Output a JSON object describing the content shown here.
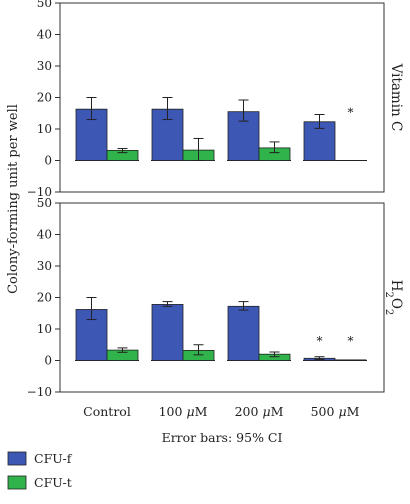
{
  "chart_data": {
    "type": "bar",
    "ylabel": "Colony-forming unit per well",
    "xlabel": "Error bars: 95% CI",
    "categories": [
      "Control",
      "100 μM",
      "200 μM",
      "500 μM"
    ],
    "ylim": [
      -10,
      50
    ],
    "yticks": [
      -10,
      0,
      10,
      20,
      30,
      40,
      50
    ],
    "grid": false,
    "legend_position": "bottom-left",
    "colors": {
      "CFU-f": "#3D57B4",
      "CFU-t": "#2FB34A"
    },
    "facets": [
      {
        "label": "Vitamin C",
        "series": [
          {
            "name": "CFU-f",
            "values": [
              16.3,
              16.3,
              15.5,
              12.3
            ],
            "ci_low": [
              13.0,
              13.0,
              12.5,
              10.2
            ],
            "ci_high": [
              20.0,
              20.0,
              19.2,
              14.6
            ]
          },
          {
            "name": "CFU-t",
            "values": [
              3.2,
              3.3,
              4.0,
              0.0
            ],
            "ci_low": [
              2.5,
              0.0,
              2.5,
              null
            ],
            "ci_high": [
              3.8,
              7.0,
              5.9,
              null
            ]
          }
        ],
        "annotations": [
          {
            "category": "500 μM",
            "series": "CFU-t",
            "text": "*"
          }
        ]
      },
      {
        "label": "H2O2",
        "series": [
          {
            "name": "CFU-f",
            "values": [
              16.2,
              17.8,
              17.2,
              0.7
            ],
            "ci_low": [
              13.0,
              17.2,
              16.0,
              0.3
            ],
            "ci_high": [
              20.0,
              18.7,
              18.7,
              1.2
            ]
          },
          {
            "name": "CFU-t",
            "values": [
              3.3,
              3.2,
              2.0,
              0.2
            ],
            "ci_low": [
              2.6,
              1.8,
              1.2,
              null
            ],
            "ci_high": [
              4.0,
              5.0,
              2.7,
              null
            ]
          }
        ],
        "annotations": [
          {
            "category": "500 μM",
            "series": "CFU-f",
            "text": "*"
          },
          {
            "category": "500 μM",
            "series": "CFU-t",
            "text": "*"
          }
        ]
      }
    ]
  }
}
